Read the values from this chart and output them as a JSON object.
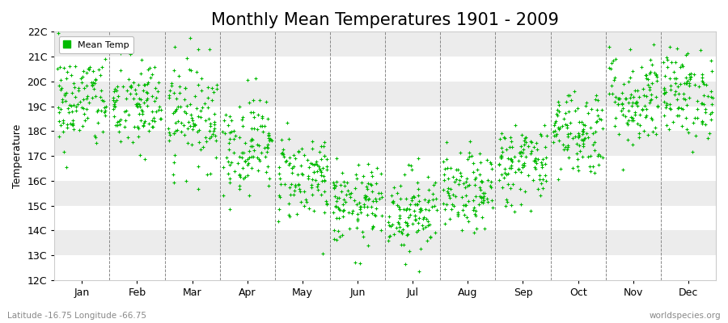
{
  "title": "Monthly Mean Temperatures 1901 - 2009",
  "ylabel": "Temperature",
  "xlabel_labels": [
    "Jan",
    "Feb",
    "Mar",
    "Apr",
    "May",
    "Jun",
    "Jul",
    "Aug",
    "Sep",
    "Oct",
    "Nov",
    "Dec"
  ],
  "ytick_labels": [
    "12C",
    "13C",
    "14C",
    "15C",
    "16C",
    "17C",
    "18C",
    "19C",
    "20C",
    "21C",
    "22C"
  ],
  "ytick_values": [
    12,
    13,
    14,
    15,
    16,
    17,
    18,
    19,
    20,
    21,
    22
  ],
  "ylim": [
    12,
    22
  ],
  "dot_color": "#00bb00",
  "bg_color": "#ffffff",
  "stripe_color": "#ececec",
  "legend_label": "Mean Temp",
  "footer_left": "Latitude -16.75 Longitude -66.75",
  "footer_right": "worldspecies.org",
  "title_fontsize": 15,
  "monthly_means": [
    19.2,
    19.0,
    18.7,
    17.5,
    16.2,
    15.0,
    14.8,
    15.5,
    16.7,
    18.0,
    19.3,
    19.5
  ],
  "monthly_stds": [
    1.0,
    1.0,
    1.1,
    1.0,
    0.9,
    0.8,
    0.85,
    0.8,
    0.85,
    0.9,
    1.0,
    0.9
  ],
  "n_years": 109,
  "seed": 42
}
